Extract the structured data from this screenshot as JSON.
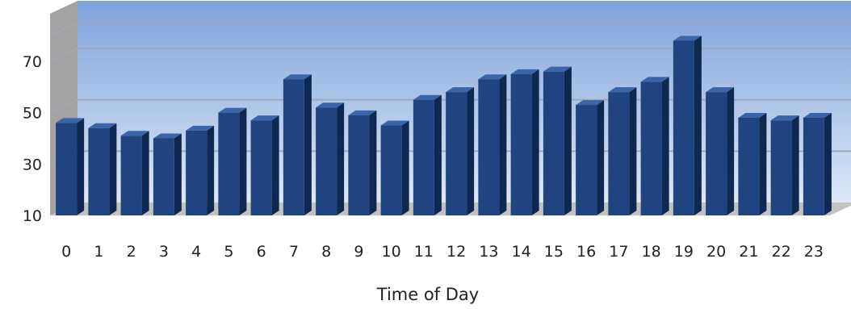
{
  "chart_data": {
    "type": "bar",
    "style": "3d-column",
    "xlabel": "Time of Day",
    "ylabel": "",
    "categories": [
      "0",
      "1",
      "2",
      "3",
      "4",
      "5",
      "6",
      "7",
      "8",
      "9",
      "10",
      "11",
      "12",
      "13",
      "14",
      "15",
      "16",
      "17",
      "18",
      "19",
      "20",
      "21",
      "22",
      "23"
    ],
    "values": [
      46,
      44,
      41,
      40,
      43,
      50,
      47,
      63,
      52,
      49,
      45,
      55,
      58,
      63,
      65,
      66,
      53,
      58,
      62,
      78,
      58,
      48,
      47,
      48
    ],
    "ylim": [
      10,
      86
    ],
    "yticks": [
      10,
      30,
      50,
      70
    ],
    "grid": true,
    "legend": "none",
    "colors": {
      "bar_front": "#1f4480",
      "bar_side": "#0f2850",
      "bar_top": "#3a65a8",
      "back_wall_top": "#7ea2dc",
      "back_wall_bottom": "#dde8f7",
      "side_wall": "#a3a3a3",
      "floor": "#c2c2c2",
      "gridline": "#a0a8b8"
    }
  }
}
